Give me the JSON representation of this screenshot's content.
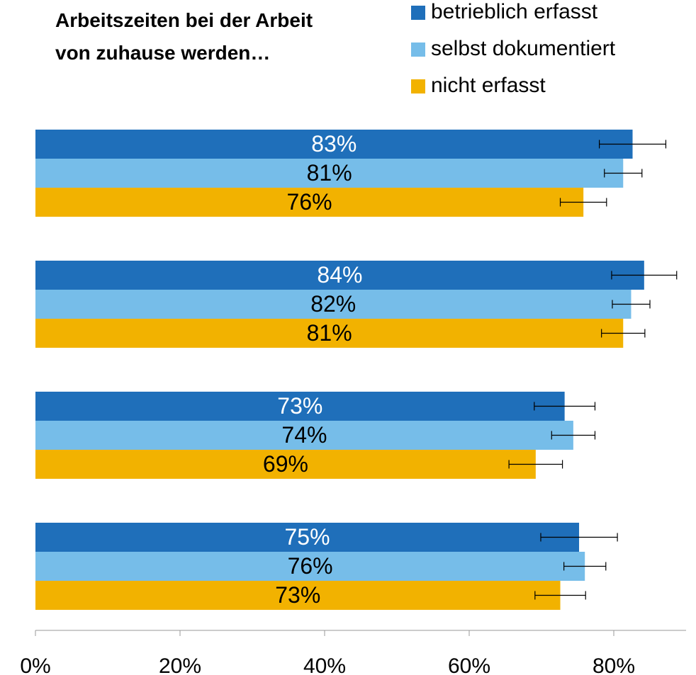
{
  "chart_data": {
    "type": "bar",
    "orientation": "horizontal",
    "title": "Arbeitszeiten bei der Arbeit von zuhause werden…",
    "categories": [
      null,
      null,
      null,
      null
    ],
    "series": [
      {
        "name": "betrieblich erfasst",
        "color": "#1f6fba",
        "label_color": "#ffffff",
        "values": [
          82.6,
          84.2,
          73.2,
          75.2
        ],
        "value_labels": [
          "83%",
          "84%",
          "73%",
          "75%"
        ],
        "errors": [
          4.6,
          4.5,
          4.2,
          5.3
        ]
      },
      {
        "name": "selbst dokumentiert",
        "color": "#76bde9",
        "label_color": "#000000",
        "values": [
          81.3,
          82.4,
          74.4,
          76.0
        ],
        "value_labels": [
          "81%",
          "82%",
          "74%",
          "76%"
        ],
        "errors": [
          2.6,
          2.6,
          3.0,
          2.9
        ]
      },
      {
        "name": "nicht erfasst",
        "color": "#f2b200",
        "label_color": "#000000",
        "values": [
          75.8,
          81.3,
          69.2,
          72.6
        ],
        "value_labels": [
          "76%",
          "81%",
          "69%",
          "73%"
        ],
        "errors": [
          3.2,
          3.0,
          3.7,
          3.5
        ]
      }
    ],
    "xlim": [
      0,
      90
    ],
    "xticks": [
      {
        "value": 0,
        "label": "0%"
      },
      {
        "value": 20,
        "label": "20%"
      },
      {
        "value": 40,
        "label": "40%"
      },
      {
        "value": 60,
        "label": "60%"
      },
      {
        "value": 80,
        "label": "80%"
      }
    ],
    "legend": "top-right",
    "grid": false
  }
}
